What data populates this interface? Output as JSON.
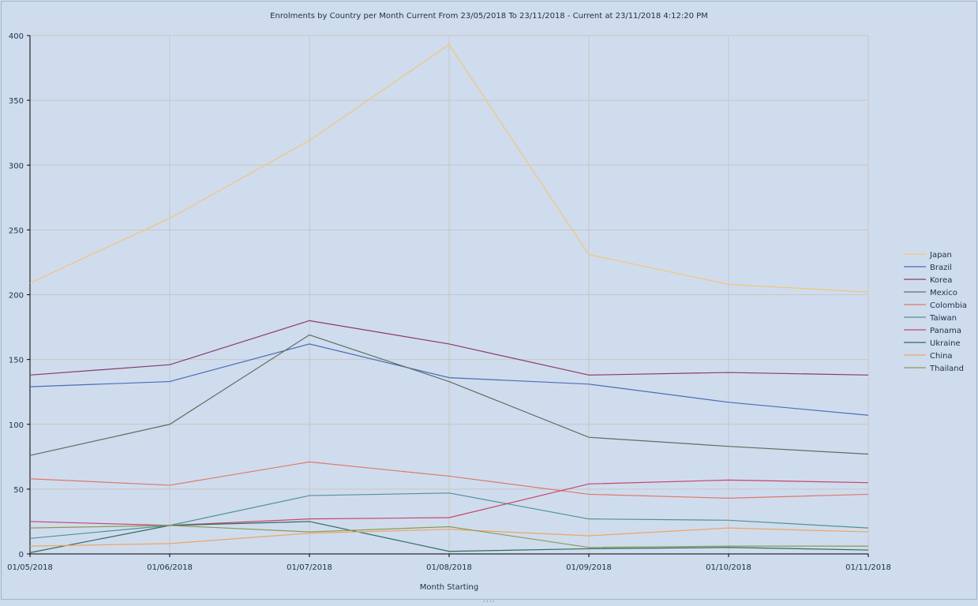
{
  "chart_data": {
    "type": "line",
    "title": "Enrolments by Country per Month Current From 23/05/2018 To 23/11/2018 - Current at 23/11/2018 4:12:20 PM",
    "xlabel": "Month Starting",
    "ylabel": "",
    "categories": [
      "01/05/2018",
      "01/06/2018",
      "01/07/2018",
      "01/08/2018",
      "01/09/2018",
      "01/10/2018",
      "01/11/2018"
    ],
    "ylim": [
      0,
      400
    ],
    "yticks": [
      0,
      50,
      100,
      150,
      200,
      250,
      300,
      350,
      400
    ],
    "grid": true,
    "legend_position": "right",
    "series": [
      {
        "name": "Japan",
        "color": "#f4c47a",
        "values": [
          209,
          259,
          319,
          393,
          231,
          208,
          202
        ]
      },
      {
        "name": "Brazil",
        "color": "#4a6db3",
        "values": [
          129,
          133,
          162,
          136,
          131,
          117,
          107
        ]
      },
      {
        "name": "Korea",
        "color": "#8a3a6c",
        "values": [
          138,
          146,
          180,
          162,
          138,
          140,
          138
        ]
      },
      {
        "name": "Mexico",
        "color": "#5d6f60",
        "values": [
          76,
          100,
          169,
          133,
          90,
          83,
          77
        ]
      },
      {
        "name": "Colombia",
        "color": "#e0786a",
        "values": [
          58,
          53,
          71,
          60,
          46,
          43,
          46
        ]
      },
      {
        "name": "Taiwan",
        "color": "#4f9296",
        "values": [
          12,
          22,
          45,
          47,
          27,
          26,
          20
        ]
      },
      {
        "name": "Panama",
        "color": "#c8456a",
        "values": [
          25,
          22,
          27,
          28,
          54,
          57,
          55
        ]
      },
      {
        "name": "Ukraine",
        "color": "#2f6c5c",
        "values": [
          1,
          22,
          25,
          2,
          4,
          5,
          3
        ]
      },
      {
        "name": "China",
        "color": "#f0a462",
        "values": [
          6,
          8,
          16,
          19,
          14,
          20,
          17
        ]
      },
      {
        "name": "Thailand",
        "color": "#8c9a52",
        "values": [
          20,
          22,
          17,
          21,
          5,
          6,
          6
        ]
      }
    ]
  }
}
